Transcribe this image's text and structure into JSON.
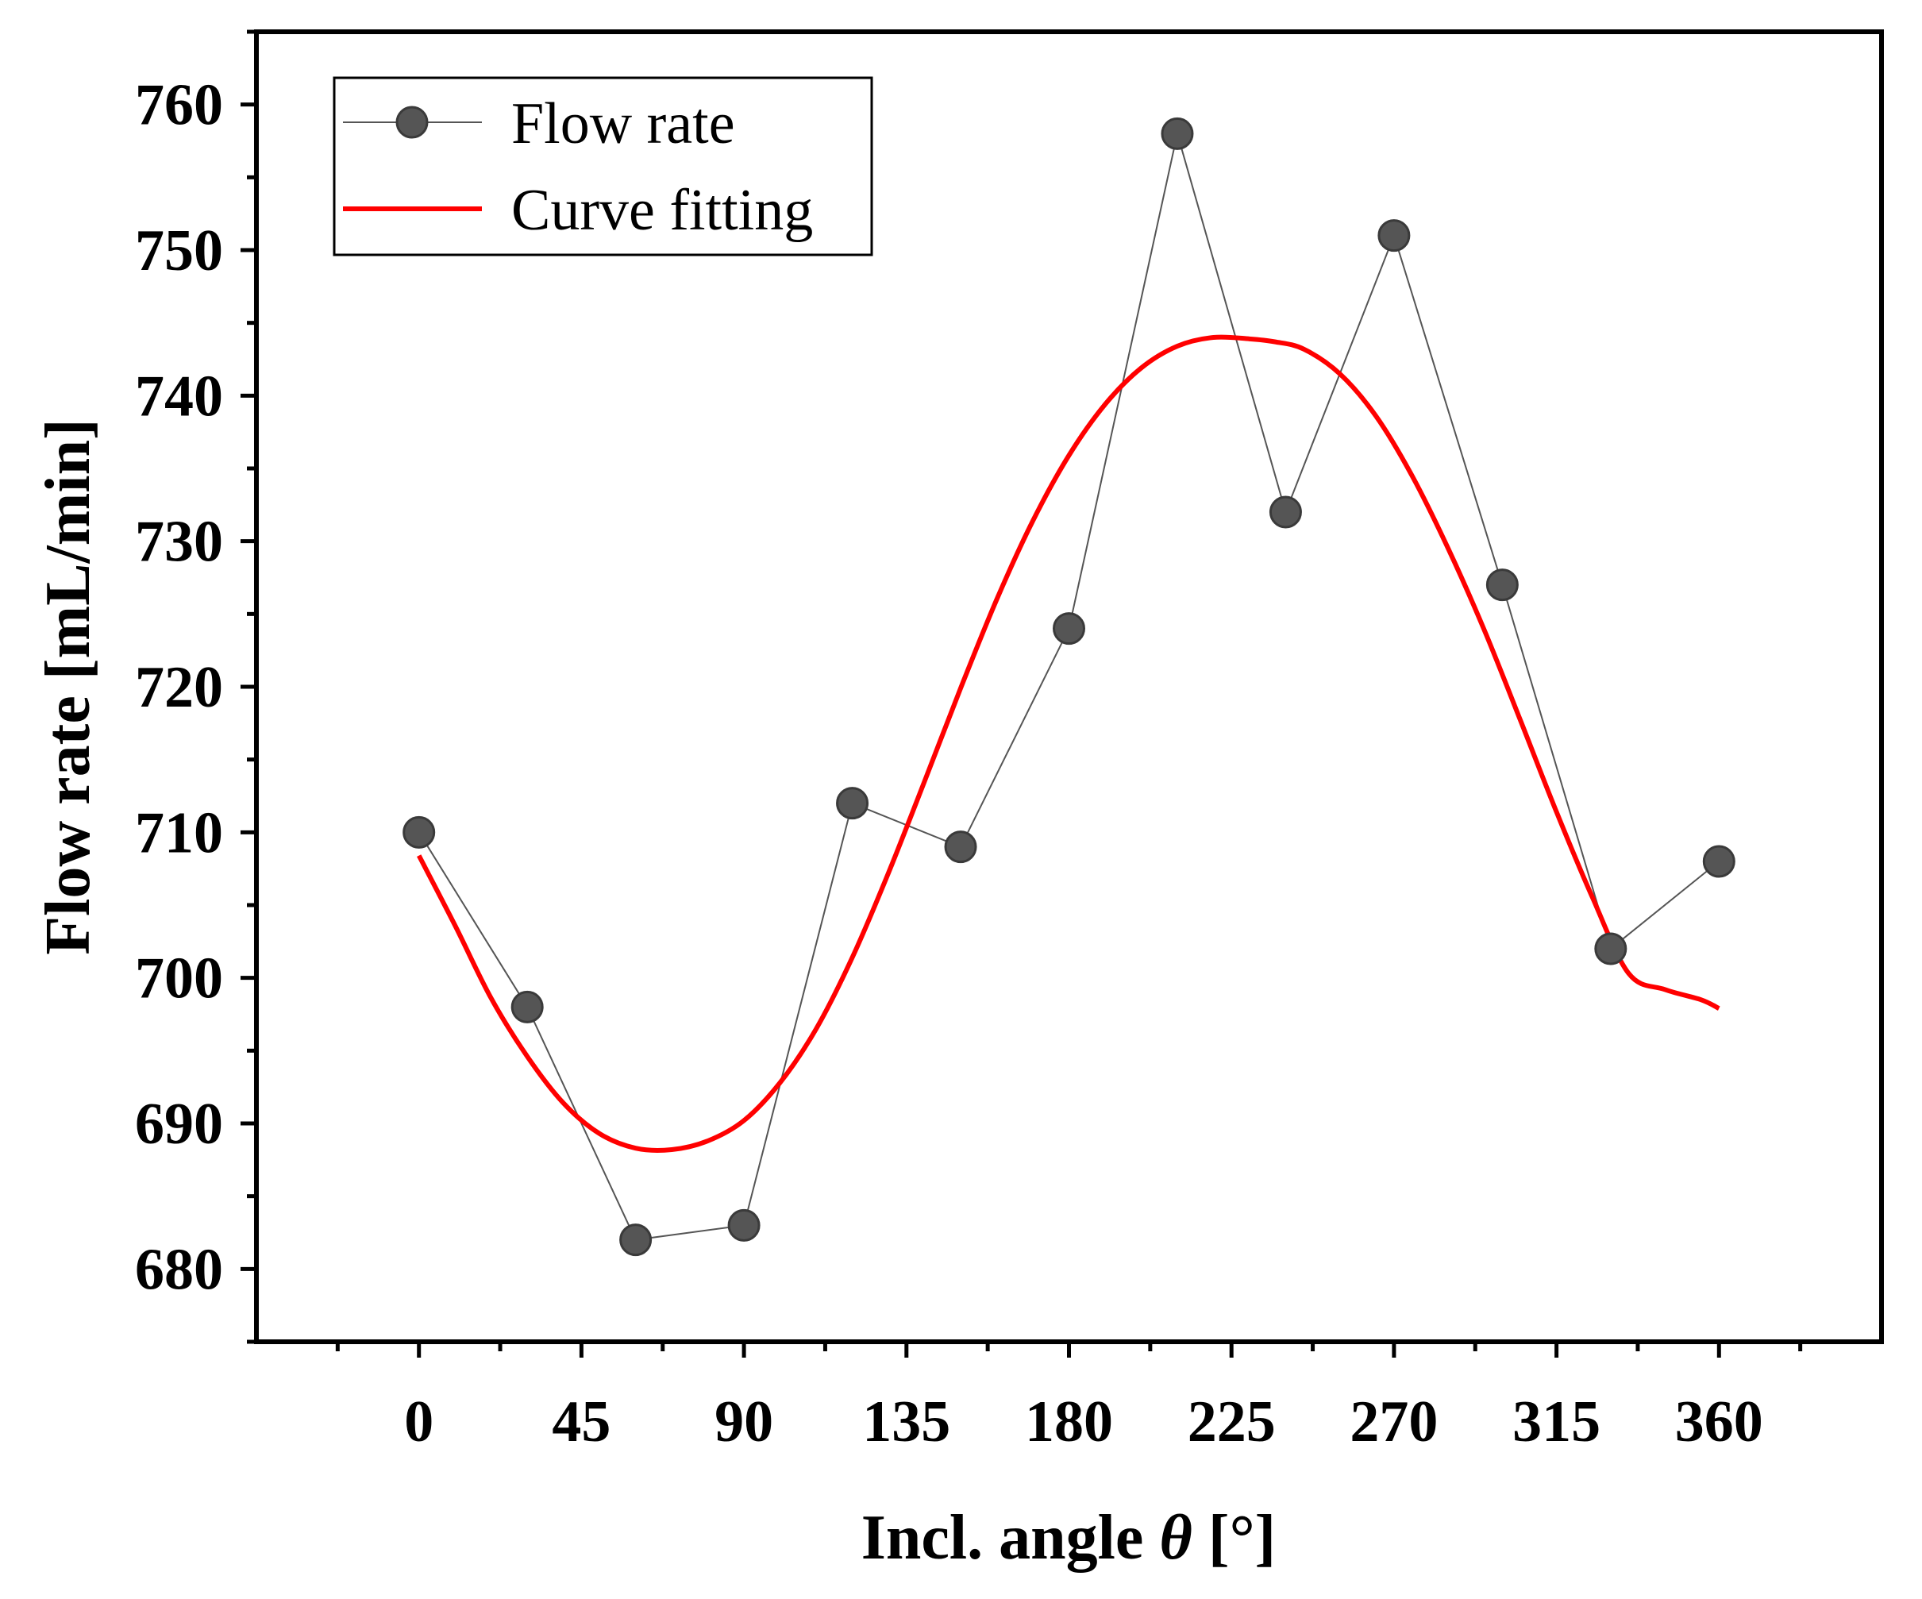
{
  "chart_data": {
    "type": "line",
    "title": "",
    "xlabel": "Incl. angle θ [°]",
    "xlabel_parts": {
      "prefix": "Incl. angle ",
      "symbol": "θ",
      "suffix": " [°]"
    },
    "ylabel": "Flow rate [mL/min]",
    "xlim": [
      -45,
      405
    ],
    "ylim": [
      675,
      765
    ],
    "xticks": [
      0,
      45,
      90,
      135,
      180,
      225,
      270,
      315,
      360
    ],
    "yticks": [
      680,
      690,
      700,
      710,
      720,
      730,
      740,
      750,
      760
    ],
    "grid": false,
    "legend_position": "top-left",
    "series": [
      {
        "name": "Flow rate",
        "style": "line+markers",
        "color": "#555555",
        "x": [
          0,
          30,
          60,
          90,
          120,
          150,
          180,
          210,
          240,
          270,
          300,
          330,
          360
        ],
        "y": [
          710,
          698,
          682,
          683,
          712,
          709,
          724,
          758,
          732,
          751,
          727,
          702,
          708
        ]
      },
      {
        "name": "Curve fitting",
        "style": "line",
        "color": "#ff0000",
        "x": [
          0,
          10,
          20,
          30,
          40,
          50,
          60,
          70,
          80,
          90,
          100,
          110,
          120,
          130,
          140,
          150,
          160,
          170,
          180,
          190,
          200,
          210,
          220,
          230,
          237,
          245,
          255,
          265,
          275,
          285,
          295,
          305,
          315,
          325,
          335,
          345,
          355,
          360
        ],
        "y": [
          708.4,
          703.6,
          698.6,
          694.6,
          691.4,
          689.3,
          688.3,
          688.2,
          688.8,
          690.2,
          692.8,
          696.5,
          701.4,
          707.2,
          713.5,
          719.9,
          726.0,
          731.4,
          735.9,
          739.4,
          741.9,
          743.4,
          744.0,
          743.9,
          743.7,
          743.2,
          741.5,
          738.6,
          734.5,
          729.5,
          723.9,
          717.7,
          711.4,
          705.5,
          700.3,
          699.2,
          698.5,
          697.9
        ]
      }
    ]
  }
}
